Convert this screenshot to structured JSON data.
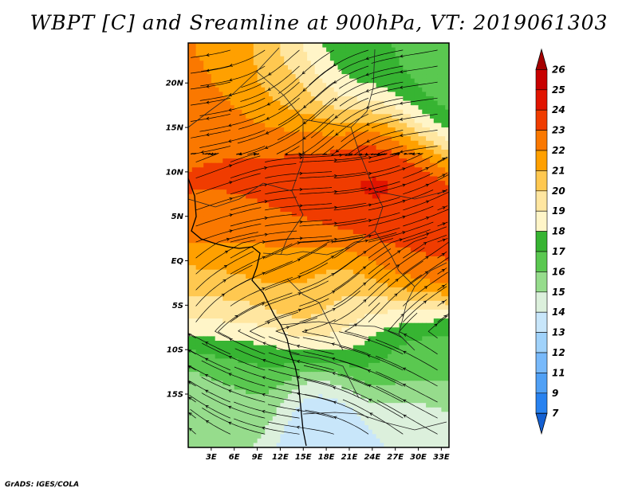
{
  "title": "WBPT [C] and Sreamline at 900hPa, VT: 2019061303",
  "footer": "GrADS: IGES/COLA",
  "map": {
    "lat_range": [
      -21,
      24.5
    ],
    "lon_range": [
      0,
      34
    ],
    "lat_ticks": [
      {
        "value": 20,
        "label": "20N"
      },
      {
        "value": 15,
        "label": "15N"
      },
      {
        "value": 10,
        "label": "10N"
      },
      {
        "value": 5,
        "label": "5N"
      },
      {
        "value": 0,
        "label": "EQ"
      },
      {
        "value": -5,
        "label": "5S"
      },
      {
        "value": -10,
        "label": "10S"
      },
      {
        "value": -15,
        "label": "15S"
      }
    ],
    "lon_ticks": [
      {
        "value": 3,
        "label": "3E"
      },
      {
        "value": 6,
        "label": "6E"
      },
      {
        "value": 9,
        "label": "9E"
      },
      {
        "value": 12,
        "label": "12E"
      },
      {
        "value": 15,
        "label": "15E"
      },
      {
        "value": 18,
        "label": "18E"
      },
      {
        "value": 21,
        "label": "21E"
      },
      {
        "value": 24,
        "label": "24E"
      },
      {
        "value": 27,
        "label": "27E"
      },
      {
        "value": 30,
        "label": "30E"
      },
      {
        "value": 33,
        "label": "33E"
      }
    ]
  },
  "colorbar": {
    "levels": [
      "26",
      "25",
      "24",
      "23",
      "22",
      "21",
      "20",
      "19",
      "18",
      "17",
      "16",
      "15",
      "14",
      "13",
      "12",
      "11",
      "9",
      "7"
    ],
    "colors": [
      "#a50000",
      "#c80000",
      "#e11400",
      "#f03c00",
      "#fa7800",
      "#ffa000",
      "#ffc850",
      "#ffe6a0",
      "#fff5c8",
      "#37b432",
      "#5ac850",
      "#96dc8c",
      "#dcf0dc",
      "#c8e6fa",
      "#a0d2fa",
      "#78b9fa",
      "#50a0f5",
      "#2882f0",
      "#1460d2"
    ]
  },
  "field_regions": [
    {
      "value": 22,
      "lat": 21,
      "lon": 3,
      "r": 4
    },
    {
      "value": 20,
      "lat": 19,
      "lon": 12,
      "r": 4
    },
    {
      "value": 17,
      "lat": 21,
      "lon": 22,
      "r": 5
    },
    {
      "value": 16,
      "lat": 17,
      "lon": 31,
      "r": 4
    },
    {
      "value": 23,
      "lat": 11,
      "lon": 7,
      "r": 5
    },
    {
      "value": 24,
      "lat": 9,
      "lon": 16,
      "r": 6
    },
    {
      "value": 25,
      "lat": 11,
      "lon": 26,
      "r": 4
    },
    {
      "value": 24,
      "lat": 7,
      "lon": 27,
      "r": 5
    },
    {
      "value": 22,
      "lat": 1,
      "lon": 9,
      "r": 4
    },
    {
      "value": 23,
      "lat": 1,
      "lon": 28,
      "r": 4
    },
    {
      "value": 21,
      "lat": -2,
      "lon": 15,
      "r": 4
    },
    {
      "value": 20,
      "lat": -5,
      "lon": 7,
      "r": 4
    },
    {
      "value": 19,
      "lat": -6,
      "lon": 22,
      "r": 5
    },
    {
      "value": 17,
      "lat": -11,
      "lon": 8,
      "r": 4
    },
    {
      "value": 16,
      "lat": -11,
      "lon": 28,
      "r": 4
    },
    {
      "value": 15,
      "lat": -16,
      "lon": 5,
      "r": 4
    },
    {
      "value": 13,
      "lat": -18,
      "lon": 18,
      "r": 4
    },
    {
      "value": 14,
      "lat": -19,
      "lon": 28,
      "r": 3
    }
  ]
}
